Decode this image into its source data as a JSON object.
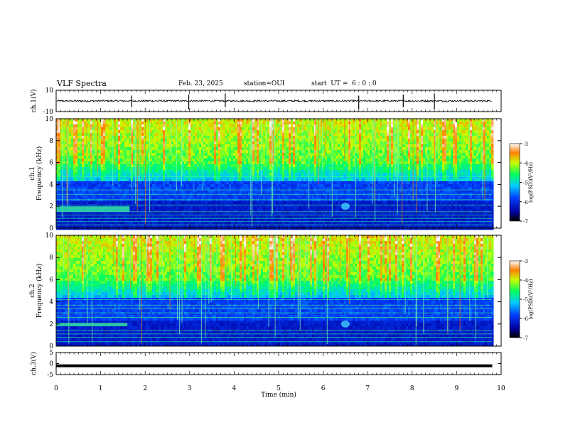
{
  "header": {
    "title": "VLF Spectra",
    "date": "Feb. 23, 2025",
    "station": "station=OUI",
    "start": "start  UT =  6 : 0 : 0"
  },
  "chart_data": [
    {
      "type": "line",
      "panel": "ch1-waveform",
      "ylabel": "ch.1(V)",
      "yticks": [
        "10",
        "-10"
      ],
      "ylim": [
        -10,
        10
      ],
      "xlim": [
        0,
        10
      ],
      "series": [
        {
          "values": "noise around 0 V, amplitude about 1 V, spikes near 1.7, 3.0, 3.8, 6.8, 7.8, 8.5 min",
          "color": "#000000"
        }
      ]
    },
    {
      "type": "heatmap",
      "panel": "ch1-spectrogram",
      "ylabel": "Frequency (kHz)",
      "channel_label": "ch.1",
      "yticks": [
        "0",
        "2",
        "4",
        "6",
        "8",
        "10"
      ],
      "ylim": [
        0,
        10
      ],
      "xlim": [
        0,
        10
      ],
      "data_end_min": 9.8,
      "colorbar": {
        "label": "log(PSD)(V²/Hz)",
        "ticks": [
          "-3",
          "-4",
          "-5",
          "-6",
          "-7"
        ],
        "range": [
          -7,
          -3
        ]
      },
      "features": {
        "noise_band_kHz": [
          1.5,
          2.0
        ],
        "noise_band_end_min": 1.65,
        "hum_lines_kHz": [
          0.3,
          0.6,
          0.9,
          1.2,
          1.5,
          2.1,
          2.6,
          3.1,
          3.5,
          4.7
        ],
        "event": {
          "time_min": 6.5,
          "freq_kHz": 2.0
        }
      }
    },
    {
      "type": "heatmap",
      "panel": "ch2-spectrogram",
      "ylabel": "Frequency (kHz)",
      "channel_label": "ch.2",
      "yticks": [
        "0",
        "2",
        "4",
        "6",
        "8",
        "10"
      ],
      "ylim": [
        0,
        10
      ],
      "xlim": [
        0,
        10
      ],
      "data_end_min": 9.8,
      "colorbar": {
        "label": "log(PSD)(V²/Hz)",
        "ticks": [
          "-3",
          "-4",
          "-5",
          "-6",
          "-7"
        ],
        "range": [
          -7,
          -3
        ]
      },
      "features": {
        "noise_band_kHz": [
          1.8,
          2.1
        ],
        "noise_band_end_min": 1.6,
        "hum_lines_kHz": [
          0.4,
          0.8,
          1.1,
          1.4,
          2.6,
          3.0,
          3.4,
          3.7,
          4.2
        ],
        "event": {
          "time_min": 6.5,
          "freq_kHz": 2.0
        }
      }
    },
    {
      "type": "line",
      "panel": "ch3-waveform",
      "ylabel": "ch.3(V)",
      "yticks": [
        "5",
        "0",
        "-5"
      ],
      "ylim": [
        -5,
        5
      ],
      "xlim": [
        0,
        10
      ],
      "xlabel": "Time  (min)",
      "xticks": [
        "0",
        "1",
        "2",
        "3",
        "4",
        "5",
        "6",
        "7",
        "8",
        "9",
        "10"
      ],
      "series": [
        {
          "values": "constant near -1 V, thick trace",
          "color": "#000000"
        }
      ]
    }
  ]
}
